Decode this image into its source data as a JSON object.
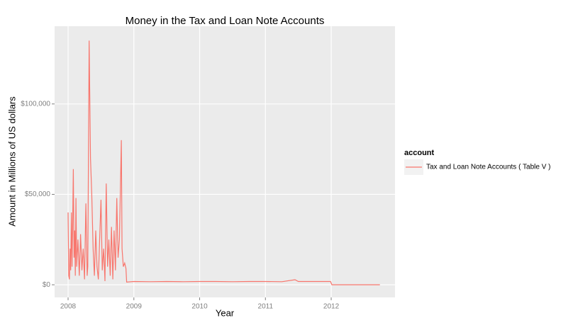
{
  "chart_data": {
    "type": "line",
    "title": "Money in the Tax and Loan Note Accounts",
    "x_label": "Year",
    "y_label": "Amount in Millions of US dollars",
    "legend_title": "account",
    "x": [
      2008.0,
      2008.01,
      2008.02,
      2008.03,
      2008.04,
      2008.05,
      2008.06,
      2008.07,
      2008.08,
      2008.09,
      2008.1,
      2008.11,
      2008.12,
      2008.13,
      2008.15,
      2008.17,
      2008.19,
      2008.21,
      2008.23,
      2008.25,
      2008.27,
      2008.29,
      2008.3,
      2008.32,
      2008.34,
      2008.36,
      2008.38,
      2008.4,
      2008.42,
      2008.44,
      2008.46,
      2008.48,
      2008.5,
      2008.52,
      2008.54,
      2008.56,
      2008.58,
      2008.6,
      2008.62,
      2008.64,
      2008.66,
      2008.68,
      2008.7,
      2008.72,
      2008.74,
      2008.76,
      2008.78,
      2008.81,
      2008.82,
      2008.84,
      2008.86,
      2008.88,
      2008.89,
      2009.0,
      2009.25,
      2009.5,
      2009.75,
      2010.0,
      2010.25,
      2010.5,
      2010.75,
      2011.0,
      2011.25,
      2011.45,
      2011.5,
      2011.75,
      2011.99,
      2012.01,
      2012.5,
      2012.74
    ],
    "series": [
      {
        "name": "Tax and Loan Note Accounts ( Table V )",
        "color": "#F8766D",
        "values": [
          40000,
          5000,
          3000,
          20000,
          8000,
          40000,
          10000,
          35000,
          64000,
          15000,
          30000,
          5000,
          48000,
          10000,
          25000,
          5000,
          28000,
          8000,
          20000,
          3000,
          45000,
          5000,
          10000,
          135000,
          70000,
          50000,
          20000,
          5000,
          30000,
          10000,
          3000,
          25000,
          47000,
          8000,
          20000,
          2000,
          56000,
          10000,
          25000,
          5000,
          32000,
          3000,
          30000,
          8000,
          48000,
          15000,
          25000,
          80000,
          20000,
          10000,
          12000,
          9000,
          1500,
          1800,
          1700,
          1800,
          1700,
          1800,
          1800,
          1700,
          1800,
          1800,
          1700,
          2800,
          1800,
          1800,
          1800,
          0,
          0,
          0
        ]
      }
    ],
    "xlim": [
      2007.795,
      2012.97
    ],
    "xticks": [
      2008,
      2009,
      2010,
      2011,
      2012
    ],
    "ylim": [
      -7000,
      143000
    ],
    "yticks": [
      {
        "value": 0,
        "label": "$0"
      },
      {
        "value": 50000,
        "label": "$50,000"
      },
      {
        "value": 100000,
        "label": "$100,000"
      }
    ],
    "grid": true,
    "legend": "right"
  }
}
